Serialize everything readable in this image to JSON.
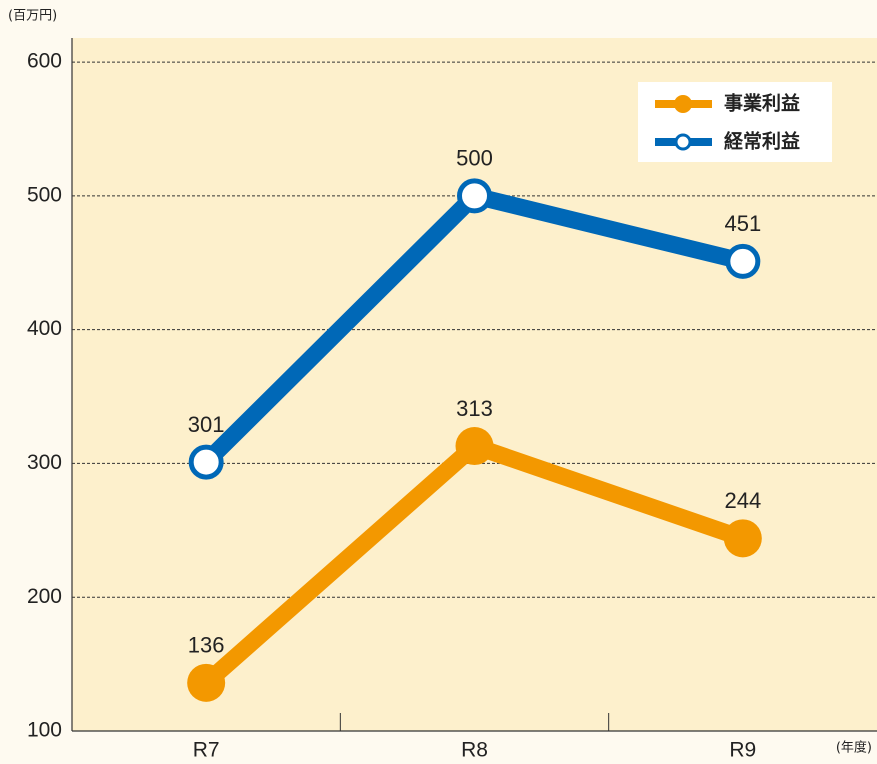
{
  "chart_data": {
    "type": "line",
    "y_label": "(百万円)",
    "x_label": "(年度)",
    "categories": [
      "R7",
      "R8",
      "R9"
    ],
    "series": [
      {
        "name": "事業利益",
        "color": "#f39800",
        "marker": "filled",
        "values": [
          136,
          313,
          244
        ]
      },
      {
        "name": "経常利益",
        "color": "#0068b7",
        "marker": "hollow",
        "values": [
          301,
          500,
          451
        ]
      }
    ],
    "ylim": [
      100,
      618
    ],
    "yticks": [
      100,
      200,
      300,
      400,
      500,
      600
    ],
    "grid": true
  }
}
